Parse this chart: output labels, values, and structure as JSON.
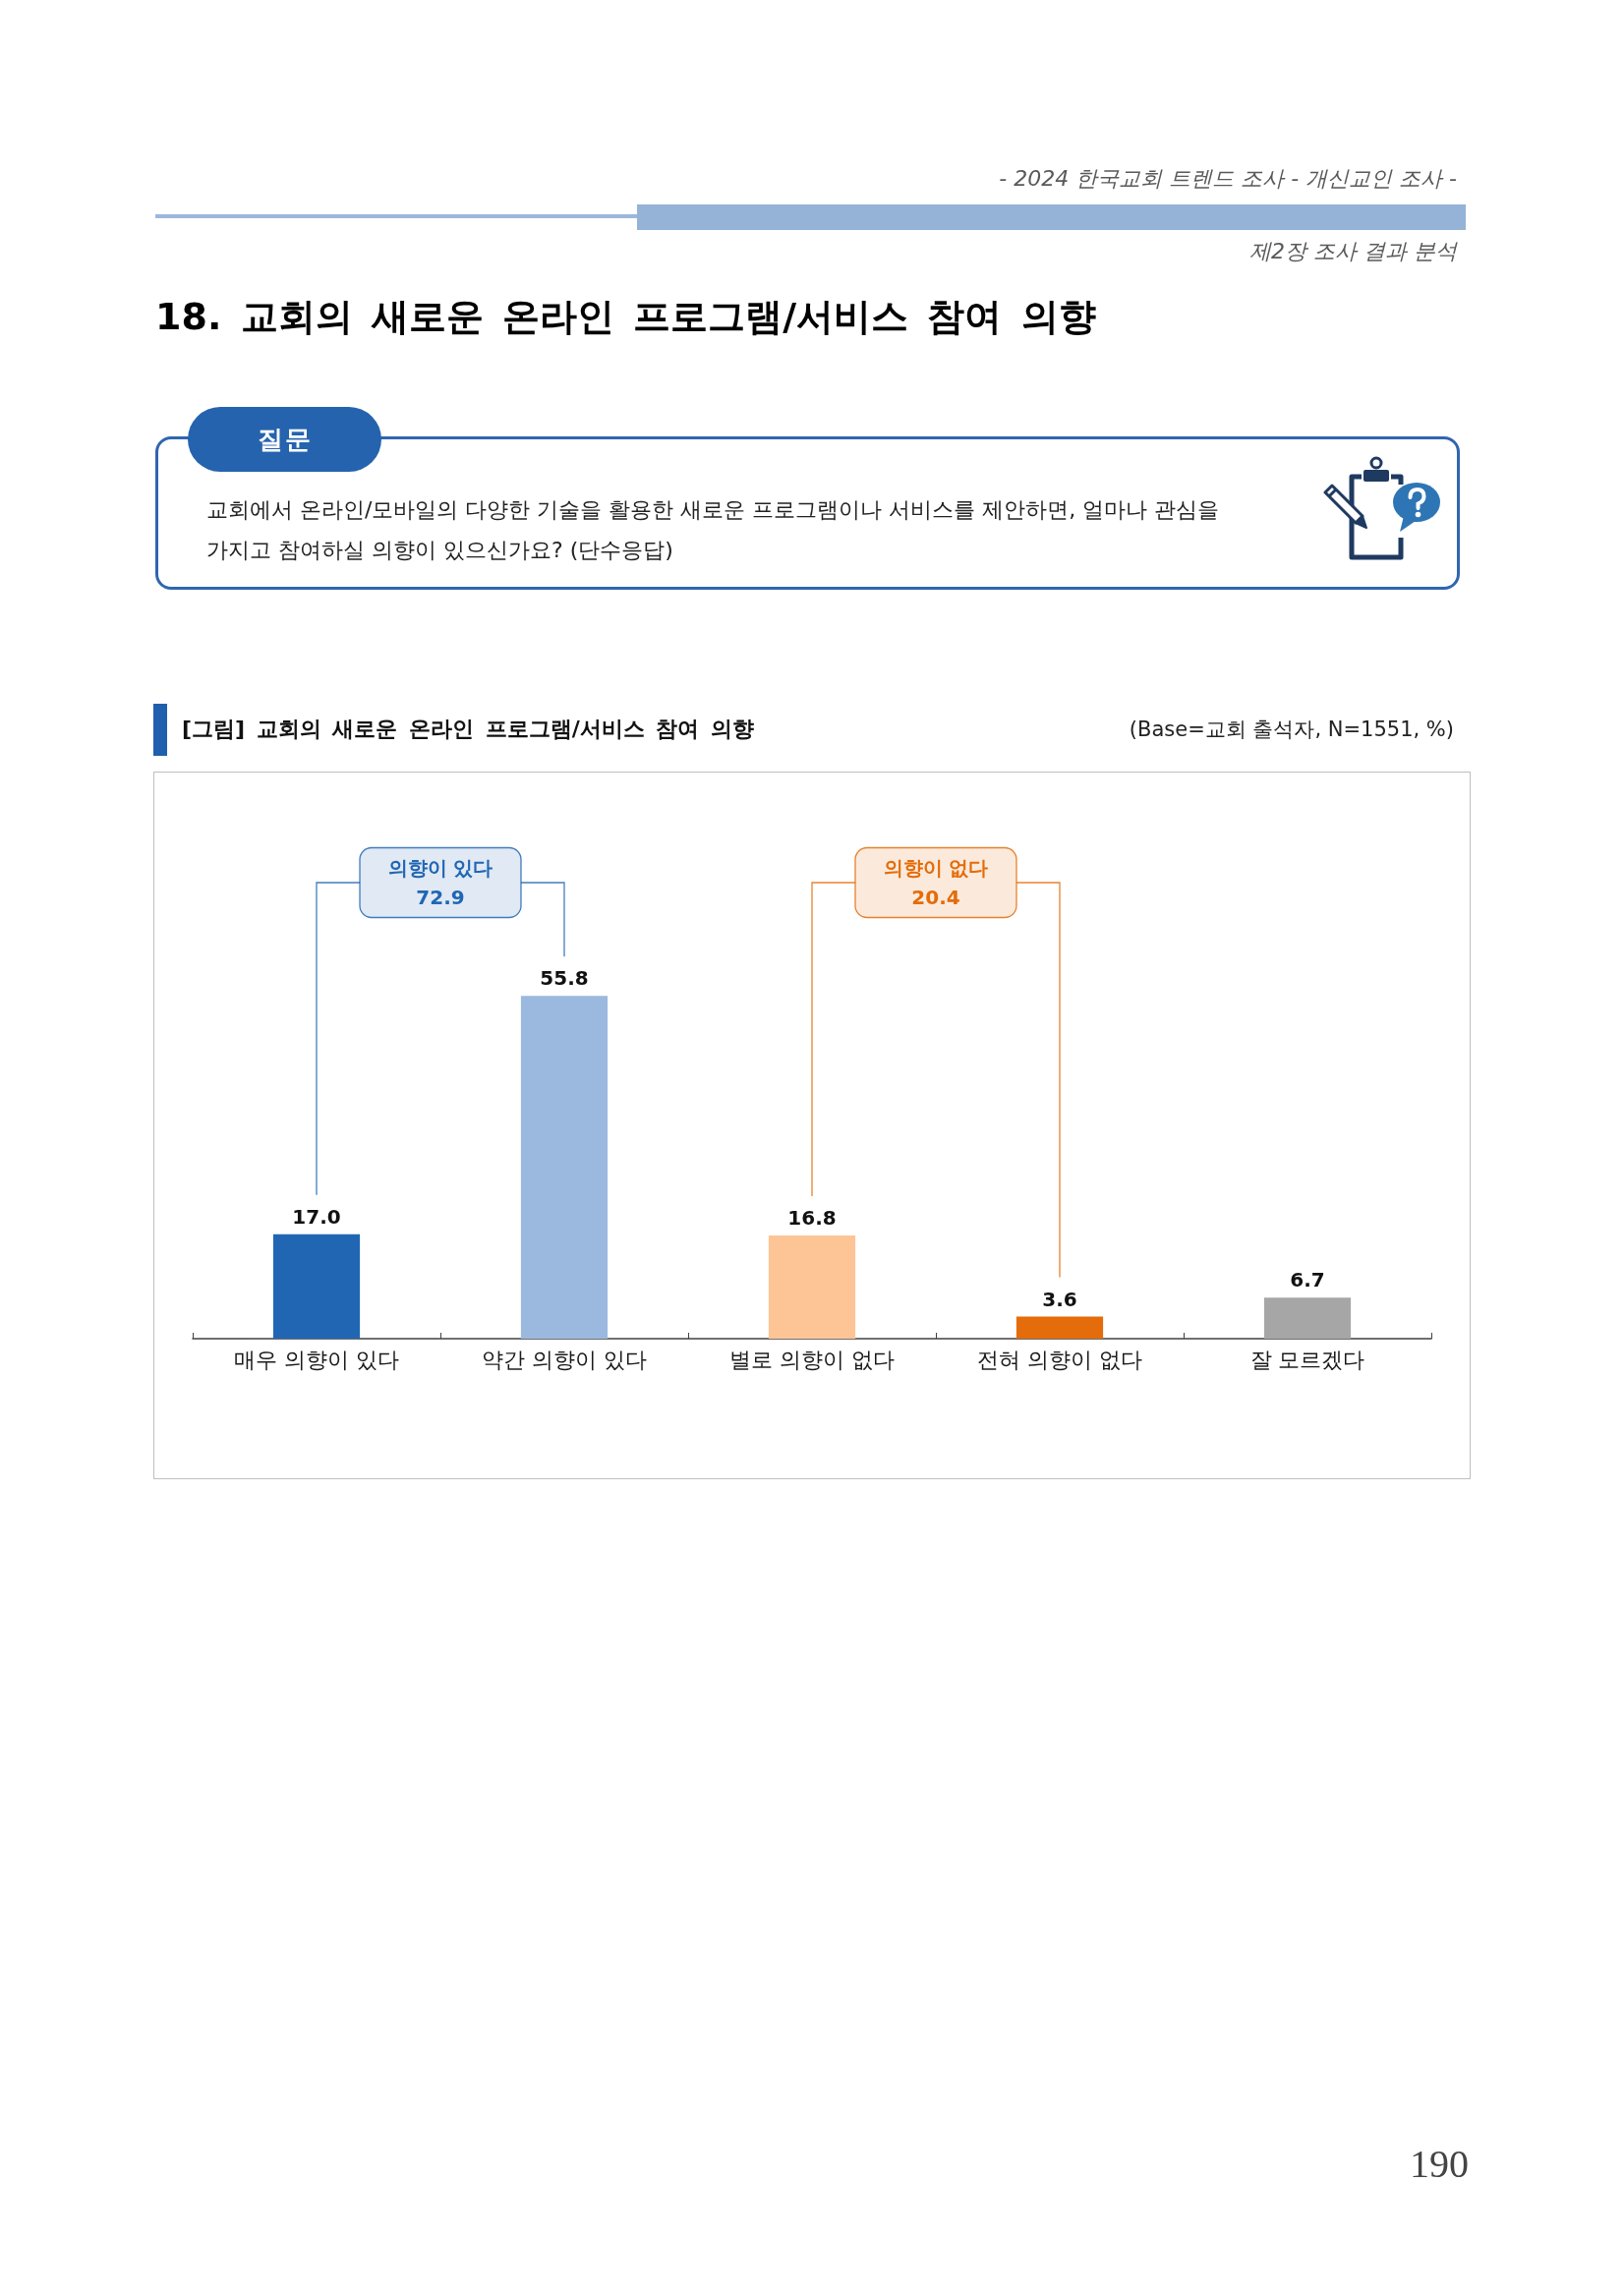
{
  "chart_data": {
    "type": "bar",
    "title": "18. 교회의 새로운 온라인 프로그램/서비스 참여 의향",
    "subtitle": "[그림] 교회의 새로운 온라인 프로그램/서비스 참여 의향",
    "categories": [
      "매우 의향이 있다",
      "약간 의향이 있다",
      "별로 의향이 없다",
      "전혀 의향이 없다",
      "잘 모르겠다"
    ],
    "values": [
      17.0,
      55.8,
      16.8,
      3.6,
      6.7
    ],
    "colors": [
      "#2166b3",
      "#9bb9de",
      "#fdc596",
      "#e46c0a",
      "#a6a6a6"
    ],
    "value_labels": [
      "17.0",
      "55.8",
      "16.8",
      "3.6",
      "6.7"
    ],
    "annotations": [
      "- 2024 한국교회 트렌드 조사 - 개신교인 조사 -",
      "제2장 조사 결과 분석",
      "질문",
      "교회에서 온라인/모바일의 다양한 기술을 활용한 새로운 프로그램이나 서비스를 제안하면, 얼마나 관심을 가지고 참여하실 의향이 있으신가요? (단수응답)",
      "(Base=교회 출석자, N=1551, %)",
      "의향이 있다 72.9",
      "의향이 없다 20.4",
      "190"
    ]
  }
}
